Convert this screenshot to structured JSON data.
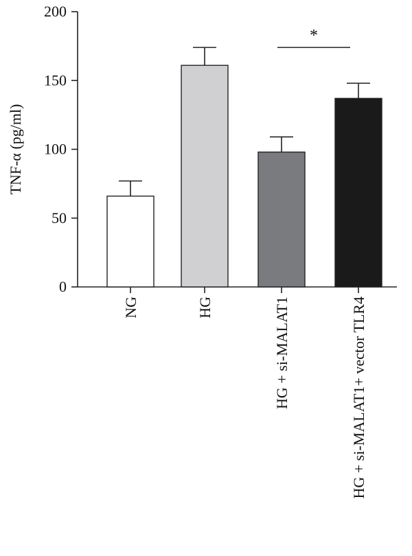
{
  "chart_data": {
    "type": "bar",
    "categories": [
      "NG",
      "HG",
      "HG + si-MALAT1",
      "HG + si-MALAT1+ vector TLR4"
    ],
    "values": [
      66,
      161,
      98,
      137
    ],
    "errors": [
      11,
      13,
      11,
      11
    ],
    "bar_colors": [
      "#ffffff",
      "#d0d0d2",
      "#7a7b7e",
      "#1a1a1a"
    ],
    "ylabel": "TNF-α (pg/ml)",
    "ylim": [
      0,
      200
    ],
    "yticks": [
      0,
      50,
      100,
      150,
      200
    ],
    "grid": false,
    "significance": {
      "from": 2,
      "to": 3,
      "label": "*",
      "level": 175
    }
  }
}
